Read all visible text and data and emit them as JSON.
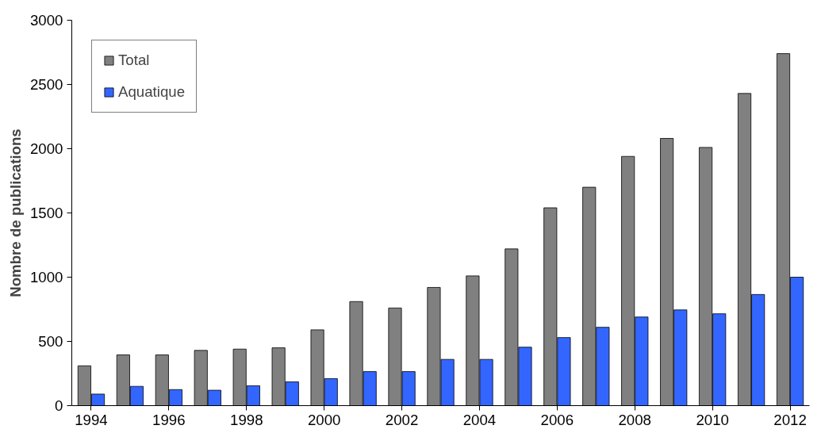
{
  "chart_data": {
    "type": "bar",
    "ylabel": "Nombre de publications",
    "x": [
      1994,
      1995,
      1996,
      1997,
      1998,
      1999,
      2000,
      2001,
      2002,
      2003,
      2004,
      2005,
      2006,
      2007,
      2008,
      2009,
      2010,
      2011,
      2012
    ],
    "series": [
      {
        "name": "Total",
        "color": "#808080",
        "values": [
          310,
          395,
          395,
          430,
          440,
          450,
          590,
          810,
          760,
          920,
          1010,
          1220,
          1540,
          1700,
          1940,
          2080,
          2010,
          2430,
          2740
        ]
      },
      {
        "name": "Aquatique",
        "color": "#3366ff",
        "values": [
          90,
          150,
          125,
          120,
          155,
          185,
          210,
          265,
          265,
          360,
          360,
          455,
          530,
          610,
          690,
          745,
          715,
          865,
          1000
        ]
      }
    ],
    "xlim": [
      1993.5,
      2012.5
    ],
    "xticks": [
      1994,
      1996,
      1998,
      2000,
      2002,
      2004,
      2006,
      2008,
      2010,
      2012
    ],
    "ylim": [
      0,
      3000
    ],
    "yticks": [
      0,
      500,
      1000,
      1500,
      2000,
      2500,
      3000
    ],
    "grid": false,
    "legend": "top left"
  }
}
